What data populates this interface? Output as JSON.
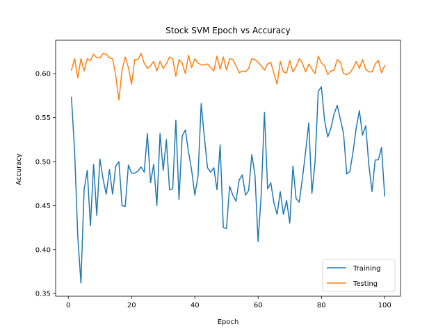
{
  "chart_data": {
    "type": "line",
    "title": "Stock SVM Epoch vs Accuracy",
    "xlabel": "Epoch",
    "ylabel": "Accuracy",
    "xlim": [
      -4,
      105
    ],
    "ylim": [
      0.347,
      0.638
    ],
    "xticks": [
      0,
      20,
      40,
      60,
      80,
      100
    ],
    "yticks": [
      0.35,
      0.4,
      0.45,
      0.5,
      0.55,
      0.6
    ],
    "ytick_labels": [
      "0.35",
      "0.40",
      "0.45",
      "0.50",
      "0.55",
      "0.60"
    ],
    "grid": false,
    "legend_position": "lower-right",
    "series": [
      {
        "name": "Training",
        "color": "#1f77b4",
        "x": [
          1,
          2,
          3,
          4,
          5,
          6,
          7,
          8,
          9,
          10,
          11,
          12,
          13,
          14,
          15,
          16,
          17,
          18,
          19,
          20,
          21,
          22,
          23,
          24,
          25,
          26,
          27,
          28,
          29,
          30,
          31,
          32,
          33,
          34,
          35,
          36,
          37,
          38,
          39,
          40,
          41,
          42,
          43,
          44,
          45,
          46,
          47,
          48,
          49,
          50,
          51,
          52,
          53,
          54,
          55,
          56,
          57,
          58,
          59,
          60,
          61,
          62,
          63,
          64,
          65,
          66,
          67,
          68,
          69,
          70,
          71,
          72,
          73,
          74,
          75,
          76,
          77,
          78,
          79,
          80,
          81,
          82,
          83,
          84,
          85,
          86,
          87,
          88,
          89,
          90,
          91,
          92,
          93,
          94,
          95,
          96,
          97,
          98,
          99,
          100
        ],
        "y": [
          0.573,
          0.512,
          0.415,
          0.362,
          0.468,
          0.49,
          0.427,
          0.497,
          0.439,
          0.503,
          0.48,
          0.463,
          0.491,
          0.463,
          0.495,
          0.5,
          0.45,
          0.449,
          0.496,
          0.487,
          0.487,
          0.489,
          0.494,
          0.488,
          0.532,
          0.476,
          0.497,
          0.45,
          0.532,
          0.49,
          0.525,
          0.468,
          0.469,
          0.547,
          0.457,
          0.529,
          0.536,
          0.511,
          0.49,
          0.462,
          0.483,
          0.566,
          0.528,
          0.493,
          0.488,
          0.493,
          0.468,
          0.519,
          0.425,
          0.424,
          0.472,
          0.462,
          0.455,
          0.479,
          0.485,
          0.462,
          0.467,
          0.508,
          0.485,
          0.409,
          0.464,
          0.556,
          0.469,
          0.476,
          0.453,
          0.44,
          0.466,
          0.44,
          0.456,
          0.43,
          0.495,
          0.458,
          0.454,
          0.481,
          0.511,
          0.544,
          0.464,
          0.5,
          0.58,
          0.585,
          0.547,
          0.528,
          0.538,
          0.554,
          0.564,
          0.548,
          0.532,
          0.486,
          0.489,
          0.511,
          0.538,
          0.558,
          0.53,
          0.541,
          0.496,
          0.466,
          0.502,
          0.502,
          0.516,
          0.461
        ]
      },
      {
        "name": "Testing",
        "color": "#ff7f0e",
        "x": [
          1,
          2,
          3,
          4,
          5,
          6,
          7,
          8,
          9,
          10,
          11,
          12,
          13,
          14,
          15,
          16,
          17,
          18,
          19,
          20,
          21,
          22,
          23,
          24,
          25,
          26,
          27,
          28,
          29,
          30,
          31,
          32,
          33,
          34,
          35,
          36,
          37,
          38,
          39,
          40,
          41,
          42,
          43,
          44,
          45,
          46,
          47,
          48,
          49,
          50,
          51,
          52,
          53,
          54,
          55,
          56,
          57,
          58,
          59,
          60,
          61,
          62,
          63,
          64,
          65,
          66,
          67,
          68,
          69,
          70,
          71,
          72,
          73,
          74,
          75,
          76,
          77,
          78,
          79,
          80,
          81,
          82,
          83,
          84,
          85,
          86,
          87,
          88,
          89,
          90,
          91,
          92,
          93,
          94,
          95,
          96,
          97,
          98,
          99,
          100
        ],
        "y": [
          0.604,
          0.617,
          0.595,
          0.617,
          0.603,
          0.617,
          0.615,
          0.622,
          0.618,
          0.618,
          0.623,
          0.622,
          0.618,
          0.617,
          0.598,
          0.57,
          0.604,
          0.619,
          0.607,
          0.588,
          0.616,
          0.616,
          0.623,
          0.612,
          0.606,
          0.609,
          0.614,
          0.603,
          0.614,
          0.606,
          0.611,
          0.619,
          0.617,
          0.597,
          0.616,
          0.612,
          0.6,
          0.621,
          0.607,
          0.617,
          0.612,
          0.61,
          0.61,
          0.611,
          0.607,
          0.603,
          0.62,
          0.605,
          0.619,
          0.604,
          0.617,
          0.616,
          0.609,
          0.601,
          0.603,
          0.602,
          0.606,
          0.617,
          0.616,
          0.613,
          0.609,
          0.604,
          0.611,
          0.613,
          0.6,
          0.588,
          0.614,
          0.602,
          0.601,
          0.615,
          0.602,
          0.608,
          0.617,
          0.612,
          0.602,
          0.611,
          0.605,
          0.6,
          0.62,
          0.612,
          0.609,
          0.599,
          0.603,
          0.604,
          0.616,
          0.613,
          0.6,
          0.599,
          0.601,
          0.606,
          0.614,
          0.606,
          0.616,
          0.605,
          0.602,
          0.602,
          0.611,
          0.615,
          0.601,
          0.609
        ]
      }
    ]
  }
}
